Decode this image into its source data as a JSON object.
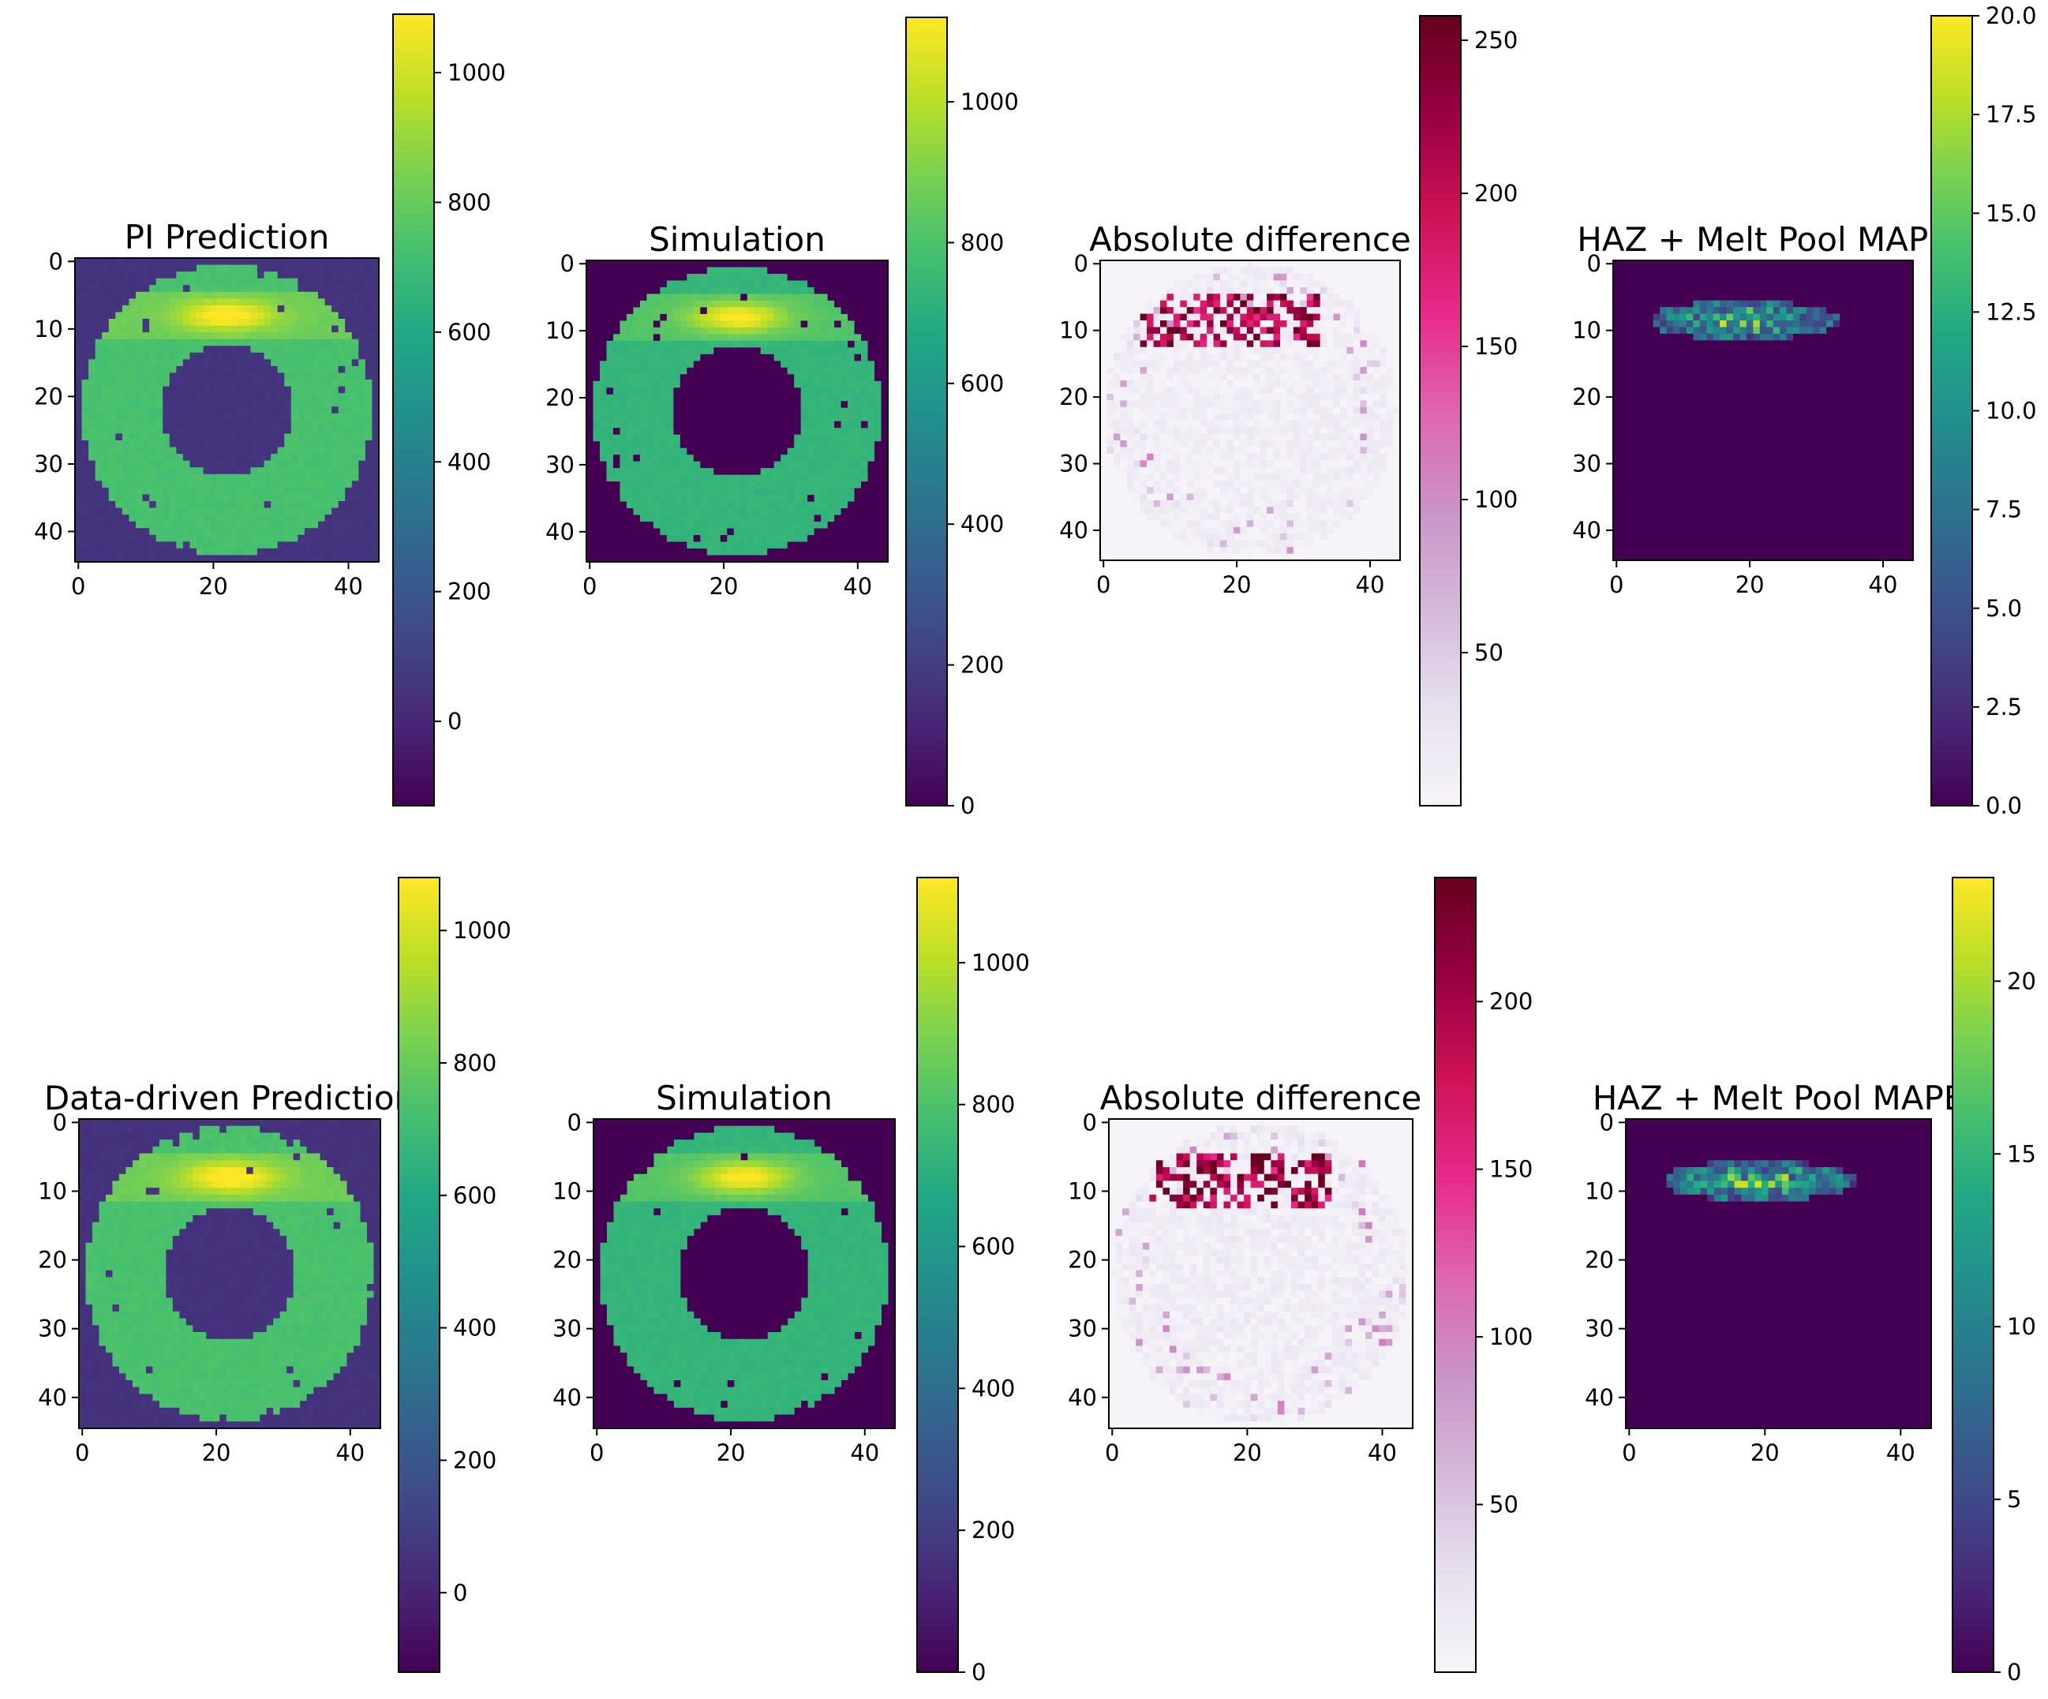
{
  "figure": {
    "rows": 2,
    "cols": 4
  },
  "chart_data": [
    {
      "type": "heatmap",
      "title": "PI Prediction",
      "colormap": "viridis",
      "grid_size": 45,
      "pattern": "ring-pred",
      "xticks": [
        0,
        20,
        40
      ],
      "yticks": [
        0,
        10,
        20,
        30,
        40
      ],
      "colorbar": {
        "range": [
          -130,
          1090
        ],
        "ticks": [
          0,
          200,
          400,
          600,
          800,
          1000
        ]
      }
    },
    {
      "type": "heatmap",
      "title": "Simulation",
      "colormap": "viridis",
      "grid_size": 45,
      "pattern": "ring-sim",
      "xticks": [
        0,
        20,
        40
      ],
      "yticks": [
        0,
        10,
        20,
        30,
        40
      ],
      "colorbar": {
        "range": [
          0,
          1120
        ],
        "ticks": [
          0,
          200,
          400,
          600,
          800,
          1000
        ]
      }
    },
    {
      "type": "heatmap",
      "title": "Absolute difference",
      "colormap": "PuRd",
      "grid_size": 45,
      "pattern": "absdiff-1",
      "xticks": [
        0,
        20,
        40
      ],
      "yticks": [
        0,
        10,
        20,
        30,
        40
      ],
      "colorbar": {
        "range": [
          0,
          258
        ],
        "ticks": [
          50,
          100,
          150,
          200,
          250
        ]
      }
    },
    {
      "type": "heatmap",
      "title": "HAZ + Melt Pool MAPE",
      "colormap": "viridis",
      "grid_size": 45,
      "pattern": "mape-1",
      "xticks": [
        0,
        20,
        40
      ],
      "yticks": [
        0,
        10,
        20,
        30,
        40
      ],
      "colorbar": {
        "range": [
          0,
          20
        ],
        "ticks": [
          "0.0",
          "2.5",
          "5.0",
          "7.5",
          "10.0",
          "12.5",
          "15.0",
          "17.5",
          "20.0"
        ]
      }
    },
    {
      "type": "heatmap",
      "title": "Data-driven Prediction",
      "colormap": "viridis",
      "grid_size": 45,
      "pattern": "ring-pred",
      "xticks": [
        0,
        20,
        40
      ],
      "yticks": [
        0,
        10,
        20,
        30,
        40
      ],
      "colorbar": {
        "range": [
          -120,
          1080
        ],
        "ticks": [
          0,
          200,
          400,
          600,
          800,
          1000
        ]
      }
    },
    {
      "type": "heatmap",
      "title": "Simulation",
      "colormap": "viridis",
      "grid_size": 45,
      "pattern": "ring-sim",
      "xticks": [
        0,
        20,
        40
      ],
      "yticks": [
        0,
        10,
        20,
        30,
        40
      ],
      "colorbar": {
        "range": [
          0,
          1120
        ],
        "ticks": [
          0,
          200,
          400,
          600,
          800,
          1000
        ]
      }
    },
    {
      "type": "heatmap",
      "title": "Absolute difference",
      "colormap": "PuRd",
      "grid_size": 45,
      "pattern": "absdiff-2",
      "xticks": [
        0,
        20,
        40
      ],
      "yticks": [
        0,
        10,
        20,
        30,
        40
      ],
      "colorbar": {
        "range": [
          0,
          237
        ],
        "ticks": [
          50,
          100,
          150,
          200
        ]
      }
    },
    {
      "type": "heatmap",
      "title": "HAZ + Melt Pool MAPE",
      "colormap": "viridis",
      "grid_size": 45,
      "pattern": "mape-2",
      "xticks": [
        0,
        20,
        40
      ],
      "yticks": [
        0,
        10,
        20,
        30,
        40
      ],
      "colorbar": {
        "range": [
          0,
          23
        ],
        "ticks": [
          0,
          5,
          10,
          15,
          20
        ]
      }
    }
  ]
}
